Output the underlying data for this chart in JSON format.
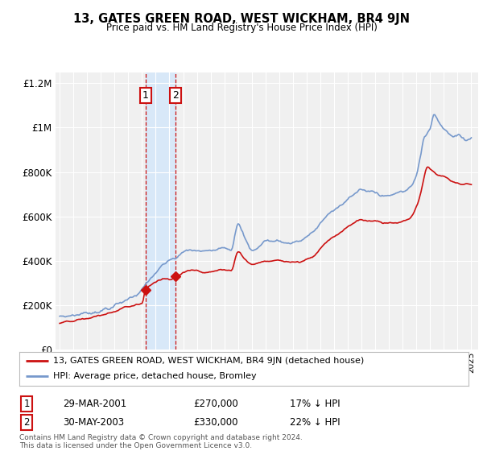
{
  "title": "13, GATES GREEN ROAD, WEST WICKHAM, BR4 9JN",
  "subtitle": "Price paid vs. HM Land Registry's House Price Index (HPI)",
  "legend_line1": "13, GATES GREEN ROAD, WEST WICKHAM, BR4 9JN (detached house)",
  "legend_line2": "HPI: Average price, detached house, Bromley",
  "footnote": "Contains HM Land Registry data © Crown copyright and database right 2024.\nThis data is licensed under the Open Government Licence v3.0.",
  "transaction1_date": "29-MAR-2001",
  "transaction1_price": "£270,000",
  "transaction1_hpi": "17% ↓ HPI",
  "transaction2_date": "30-MAY-2003",
  "transaction2_price": "£330,000",
  "transaction2_hpi": "22% ↓ HPI",
  "hpi_color": "#7799cc",
  "price_color": "#cc1111",
  "background_color": "#ffffff",
  "plot_bg_color": "#f0f0f0",
  "shade_color": "#d8e8f8",
  "t1_year": 2001.25,
  "t1_price": 270000,
  "t2_year": 2003.42,
  "t2_price": 330000,
  "ylim_top": 1250000,
  "ylim_bottom": 0,
  "xlim_left": 1994.7,
  "xlim_right": 2025.5
}
